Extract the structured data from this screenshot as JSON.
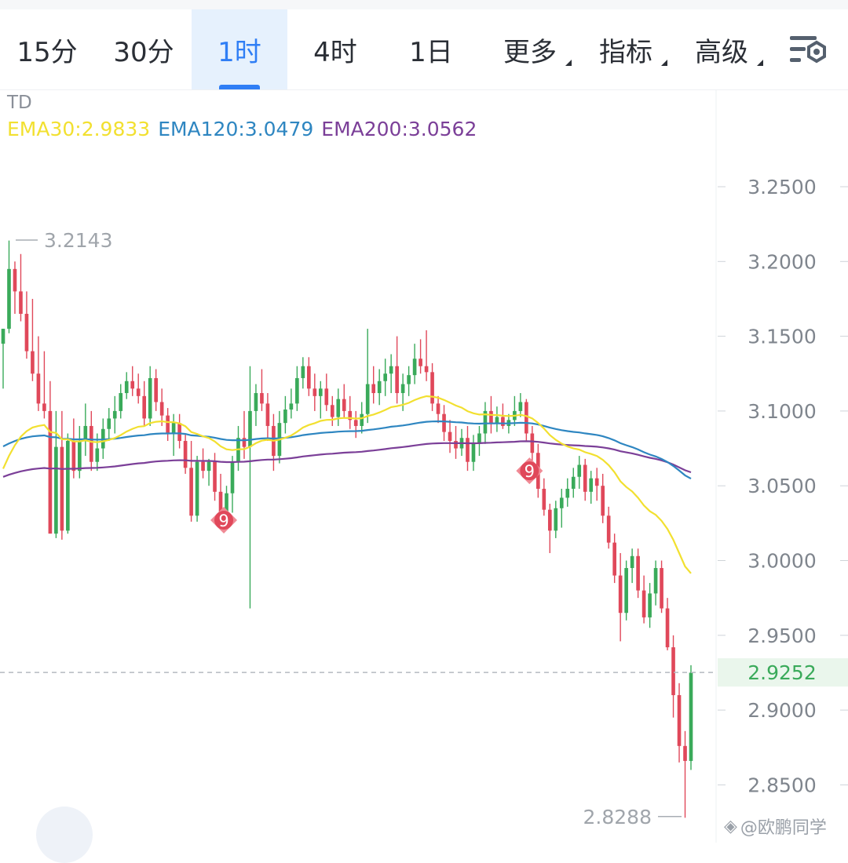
{
  "toolbar": {
    "tabs": [
      {
        "label": "15分",
        "active": false,
        "dropdown": false
      },
      {
        "label": "30分",
        "active": false,
        "dropdown": false
      },
      {
        "label": "1时",
        "active": true,
        "dropdown": false
      },
      {
        "label": "4时",
        "active": false,
        "dropdown": false
      },
      {
        "label": "1日",
        "active": false,
        "dropdown": false
      },
      {
        "label": "更多",
        "active": false,
        "dropdown": true
      },
      {
        "label": "指标",
        "active": false,
        "dropdown": true
      },
      {
        "label": "高级",
        "active": false,
        "dropdown": true
      }
    ],
    "settings_icon": "chart-settings-icon"
  },
  "indicator": {
    "name": "TD",
    "ema30": "EMA30:2.9833",
    "ema120": "EMA120:3.0479",
    "ema200": "EMA200:3.0562"
  },
  "watermark": "@欧鹏同学",
  "colors": {
    "up": "#3aaa5a",
    "down": "#e0485a",
    "ema30": "#f2e030",
    "ema120": "#2e86c1",
    "ema200": "#7b3f98",
    "active_tab": "#2f7ef5"
  },
  "chart_data": {
    "type": "candlestick",
    "y_ticks": [
      "3.2500",
      "3.2000",
      "3.1500",
      "3.1000",
      "3.0500",
      "3.0000",
      "2.9500",
      "2.9000",
      "2.8500"
    ],
    "ylim": [
      2.82,
      3.27
    ],
    "last_price": "2.9252",
    "last_price_value": 2.9252,
    "high_label": "3.2143",
    "high_value": 3.2143,
    "low_label": "2.8288",
    "low_value": 2.8288,
    "td_markers": [
      {
        "label": "9",
        "index": 37,
        "price": 3.027
      },
      {
        "label": "9",
        "index": 89,
        "price": 3.06
      }
    ],
    "candles": [
      [
        3.145,
        3.155,
        3.115,
        3.155
      ],
      [
        3.155,
        3.214,
        3.152,
        3.195
      ],
      [
        3.195,
        3.2,
        3.165,
        3.18
      ],
      [
        3.18,
        3.205,
        3.16,
        3.165
      ],
      [
        3.165,
        3.18,
        3.135,
        3.14
      ],
      [
        3.14,
        3.175,
        3.12,
        3.125
      ],
      [
        3.125,
        3.15,
        3.1,
        3.105
      ],
      [
        3.105,
        3.14,
        3.095,
        3.1
      ],
      [
        3.1,
        3.12,
        3.02,
        3.018
      ],
      [
        3.018,
        3.1,
        3.015,
        3.076
      ],
      [
        3.076,
        3.1,
        3.014,
        3.02
      ],
      [
        3.02,
        3.085,
        3.018,
        3.08
      ],
      [
        3.08,
        3.095,
        3.055,
        3.06
      ],
      [
        3.06,
        3.09,
        3.055,
        3.08
      ],
      [
        3.08,
        3.105,
        3.07,
        3.09
      ],
      [
        3.09,
        3.1,
        3.06,
        3.066
      ],
      [
        3.066,
        3.085,
        3.06,
        3.075
      ],
      [
        3.075,
        3.095,
        3.068,
        3.088
      ],
      [
        3.088,
        3.102,
        3.08,
        3.095
      ],
      [
        3.095,
        3.11,
        3.085,
        3.1
      ],
      [
        3.1,
        3.118,
        3.095,
        3.112
      ],
      [
        3.112,
        3.126,
        3.108,
        3.12
      ],
      [
        3.12,
        3.13,
        3.11,
        3.115
      ],
      [
        3.115,
        3.125,
        3.105,
        3.11
      ],
      [
        3.11,
        3.12,
        3.09,
        3.095
      ],
      [
        3.095,
        3.13,
        3.09,
        3.122
      ],
      [
        3.122,
        3.128,
        3.1,
        3.106
      ],
      [
        3.106,
        3.115,
        3.09,
        3.097
      ],
      [
        3.097,
        3.102,
        3.08,
        3.085
      ],
      [
        3.085,
        3.098,
        3.07,
        3.092
      ],
      [
        3.092,
        3.098,
        3.075,
        3.08
      ],
      [
        3.08,
        3.085,
        3.058,
        3.062
      ],
      [
        3.062,
        3.08,
        3.026,
        3.03
      ],
      [
        3.03,
        3.07,
        3.026,
        3.066
      ],
      [
        3.066,
        3.075,
        3.055,
        3.06
      ],
      [
        3.06,
        3.068,
        3.05,
        3.066
      ],
      [
        3.066,
        3.072,
        3.04,
        3.046
      ],
      [
        3.046,
        3.058,
        3.025,
        3.03
      ],
      [
        3.03,
        3.05,
        3.028,
        3.045
      ],
      [
        3.045,
        3.07,
        3.032,
        3.066
      ],
      [
        3.066,
        3.09,
        3.06,
        3.082
      ],
      [
        3.082,
        3.1,
        3.068,
        3.076
      ],
      [
        3.076,
        3.13,
        2.968,
        3.1
      ],
      [
        3.1,
        3.118,
        3.09,
        3.112
      ],
      [
        3.112,
        3.128,
        3.1,
        3.105
      ],
      [
        3.105,
        3.112,
        3.08,
        3.09
      ],
      [
        3.09,
        3.098,
        3.06,
        3.07
      ],
      [
        3.07,
        3.1,
        3.065,
        3.092
      ],
      [
        3.092,
        3.11,
        3.085,
        3.101
      ],
      [
        3.101,
        3.115,
        3.095,
        3.105
      ],
      [
        3.105,
        3.13,
        3.1,
        3.122
      ],
      [
        3.122,
        3.136,
        3.115,
        3.13
      ],
      [
        3.13,
        3.136,
        3.11,
        3.115
      ],
      [
        3.115,
        3.125,
        3.1,
        3.11
      ],
      [
        3.11,
        3.12,
        3.095,
        3.115
      ],
      [
        3.115,
        3.125,
        3.1,
        3.104
      ],
      [
        3.104,
        3.11,
        3.09,
        3.096
      ],
      [
        3.096,
        3.115,
        3.09,
        3.108
      ],
      [
        3.108,
        3.118,
        3.095,
        3.1
      ],
      [
        3.1,
        3.11,
        3.088,
        3.094
      ],
      [
        3.094,
        3.1,
        3.082,
        3.09
      ],
      [
        3.09,
        3.106,
        3.085,
        3.098
      ],
      [
        3.098,
        3.155,
        3.092,
        3.118
      ],
      [
        3.118,
        3.13,
        3.105,
        3.112
      ],
      [
        3.112,
        3.128,
        3.104,
        3.12
      ],
      [
        3.12,
        3.135,
        3.11,
        3.125
      ],
      [
        3.125,
        3.138,
        3.112,
        3.13
      ],
      [
        3.13,
        3.15,
        3.105,
        3.112
      ],
      [
        3.112,
        3.125,
        3.1,
        3.118
      ],
      [
        3.118,
        3.13,
        3.11,
        3.124
      ],
      [
        3.124,
        3.145,
        3.118,
        3.135
      ],
      [
        3.135,
        3.148,
        3.125,
        3.13
      ],
      [
        3.13,
        3.154,
        3.12,
        3.126
      ],
      [
        3.126,
        3.132,
        3.1,
        3.105
      ],
      [
        3.105,
        3.11,
        3.092,
        3.098
      ],
      [
        3.098,
        3.104,
        3.08,
        3.086
      ],
      [
        3.086,
        3.094,
        3.072,
        3.08
      ],
      [
        3.08,
        3.09,
        3.068,
        3.075
      ],
      [
        3.075,
        3.088,
        3.07,
        3.082
      ],
      [
        3.082,
        3.09,
        3.06,
        3.066
      ],
      [
        3.066,
        3.084,
        3.06,
        3.078
      ],
      [
        3.078,
        3.09,
        3.07,
        3.085
      ],
      [
        3.085,
        3.106,
        3.078,
        3.1
      ],
      [
        3.1,
        3.11,
        3.085,
        3.092
      ],
      [
        3.092,
        3.103,
        3.086,
        3.096
      ],
      [
        3.096,
        3.105,
        3.088,
        3.09
      ],
      [
        3.09,
        3.098,
        3.085,
        3.094
      ],
      [
        3.094,
        3.11,
        3.09,
        3.1
      ],
      [
        3.1,
        3.112,
        3.096,
        3.106
      ],
      [
        3.106,
        3.108,
        3.08,
        3.085
      ],
      [
        3.085,
        3.09,
        3.065,
        3.072
      ],
      [
        3.072,
        3.078,
        3.042,
        3.048
      ],
      [
        3.048,
        3.055,
        3.03,
        3.034
      ],
      [
        3.034,
        3.038,
        3.005,
        3.02
      ],
      [
        3.02,
        3.04,
        3.015,
        3.035
      ],
      [
        3.035,
        3.048,
        3.022,
        3.042
      ],
      [
        3.042,
        3.055,
        3.036,
        3.048
      ],
      [
        3.048,
        3.062,
        3.042,
        3.056
      ],
      [
        3.056,
        3.07,
        3.048,
        3.064
      ],
      [
        3.064,
        3.068,
        3.04,
        3.046
      ],
      [
        3.046,
        3.06,
        3.038,
        3.055
      ],
      [
        3.055,
        3.062,
        3.04,
        3.05
      ],
      [
        3.05,
        3.058,
        3.025,
        3.03
      ],
      [
        3.03,
        3.036,
        3.008,
        3.012
      ],
      [
        3.012,
        3.018,
        2.985,
        2.99
      ],
      [
        2.99,
        3.005,
        2.946,
        2.965
      ],
      [
        2.965,
        3.0,
        2.96,
        2.995
      ],
      [
        2.995,
        3.008,
        2.985,
        3.003
      ],
      [
        3.003,
        3.008,
        2.975,
        2.98
      ],
      [
        2.98,
        2.99,
        2.958,
        2.962
      ],
      [
        2.962,
        2.985,
        2.955,
        2.978
      ],
      [
        2.978,
        3.0,
        2.97,
        2.995
      ],
      [
        2.995,
        3.0,
        2.965,
        2.968
      ],
      [
        2.968,
        2.975,
        2.94,
        2.942
      ],
      [
        2.942,
        2.95,
        2.895,
        2.91
      ],
      [
        2.91,
        2.918,
        2.865,
        2.876
      ],
      [
        2.876,
        2.886,
        2.828,
        2.866
      ],
      [
        2.866,
        2.93,
        2.86,
        2.925
      ]
    ]
  }
}
